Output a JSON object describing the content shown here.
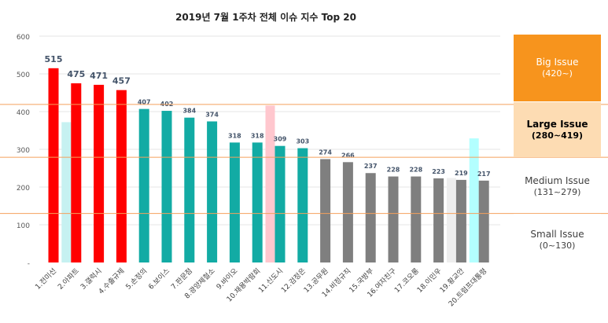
{
  "chart_data": {
    "type": "bar",
    "title": "2019년 7월 1주차 전체 이슈 지수 Top 20",
    "ylim": [
      0,
      600
    ],
    "yticks": [
      "-",
      "100",
      "200",
      "300",
      "400",
      "500",
      "600"
    ],
    "categories": [
      "1.전미선",
      "2.아파트",
      "3.갤럭시",
      "4.수출규제",
      "5.손정의",
      "6.보이스",
      "7.판문점",
      "8.광양제철소",
      "9.바이오",
      "10.채용박람회",
      "11.신도시",
      "12.검정은",
      "13.공무원",
      "14.비정규직",
      "15.국방부",
      "16.여자친구",
      "17.코오롱",
      "18.이민우",
      "19.황교안",
      "20.트럼프대통령"
    ],
    "values": [
      515,
      475,
      471,
      457,
      407,
      402,
      384,
      374,
      318,
      318,
      309,
      303,
      274,
      266,
      237,
      228,
      228,
      223,
      219,
      217
    ],
    "value_labels": [
      "515",
      "475",
      "471",
      "457",
      "407",
      "402",
      "384",
      "374",
      "318",
      "318",
      "309",
      "303",
      "274",
      "266",
      "237",
      "228",
      "228",
      "223",
      "219",
      "217"
    ],
    "bar_colors": [
      "#ff0000",
      "#ff0000",
      "#ff0000",
      "#ff0000",
      "#12aba4",
      "#12aba4",
      "#12aba4",
      "#12aba4",
      "#12aba4",
      "#12aba4",
      "#12aba4",
      "#12aba4",
      "#7f7f7f",
      "#7f7f7f",
      "#7f7f7f",
      "#7f7f7f",
      "#7f7f7f",
      "#7f7f7f",
      "#7f7f7f",
      "#7f7f7f"
    ],
    "previous_week": [
      {
        "index": 1,
        "value": 372,
        "color": "#c6f1f1"
      },
      {
        "index": 10,
        "value": 416,
        "color": "#ffc7ce"
      },
      {
        "index": 18,
        "value": 224,
        "color": "#eeeeee"
      },
      {
        "index": 19,
        "value": 329,
        "color": "#b3ffff"
      }
    ],
    "thresholds": [
      419,
      279,
      130
    ],
    "threshold_color": "#f4a05c",
    "grid": true
  },
  "tiers": [
    {
      "name": "Big Issue",
      "range": "(420~)",
      "bg": "#f7941d",
      "text_color": "#ffffff",
      "bold": false
    },
    {
      "name": "Large Issue",
      "range": "(280~419)",
      "bg": "#fddcb3",
      "text_color": "#000000",
      "bold": true
    },
    {
      "name": "Medium Issue",
      "range": "(131~279)",
      "bg": "#ffffff",
      "text_color": "#404040",
      "bold": false
    },
    {
      "name": "Small Issue",
      "range": "(0~130)",
      "bg": "#ffffff",
      "text_color": "#404040",
      "bold": false
    }
  ]
}
